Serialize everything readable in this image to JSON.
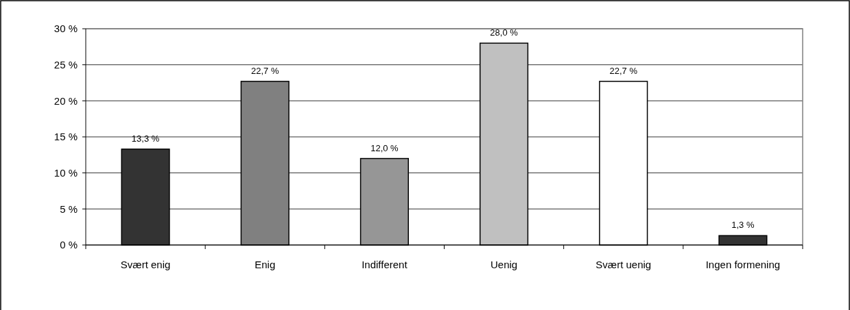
{
  "chart_data": {
    "type": "bar",
    "categories": [
      "Svært enig",
      "Enig",
      "Indifferent",
      "Uenig",
      "Svært uenig",
      "Ingen formening"
    ],
    "values": [
      13.3,
      22.7,
      12.0,
      28.0,
      22.7,
      1.3
    ],
    "colors": [
      "#333333",
      "#808080",
      "#969696",
      "#c0c0c0",
      "#ffffff",
      "#333333"
    ],
    "value_labels": [
      "13,3 %",
      "22,7 %",
      "12,0 %",
      "28,0 %",
      "22,7 %",
      "1,3 %"
    ],
    "ylim": [
      0,
      30
    ],
    "yticks": [
      {
        "value": 0,
        "label": "0 %"
      },
      {
        "value": 5,
        "label": "5 %"
      },
      {
        "value": 10,
        "label": "10 %"
      },
      {
        "value": 15,
        "label": "15 %"
      },
      {
        "value": 20,
        "label": "20 %"
      },
      {
        "value": 25,
        "label": "25 %"
      },
      {
        "value": 30,
        "label": "30 %"
      }
    ],
    "grid": "y"
  }
}
